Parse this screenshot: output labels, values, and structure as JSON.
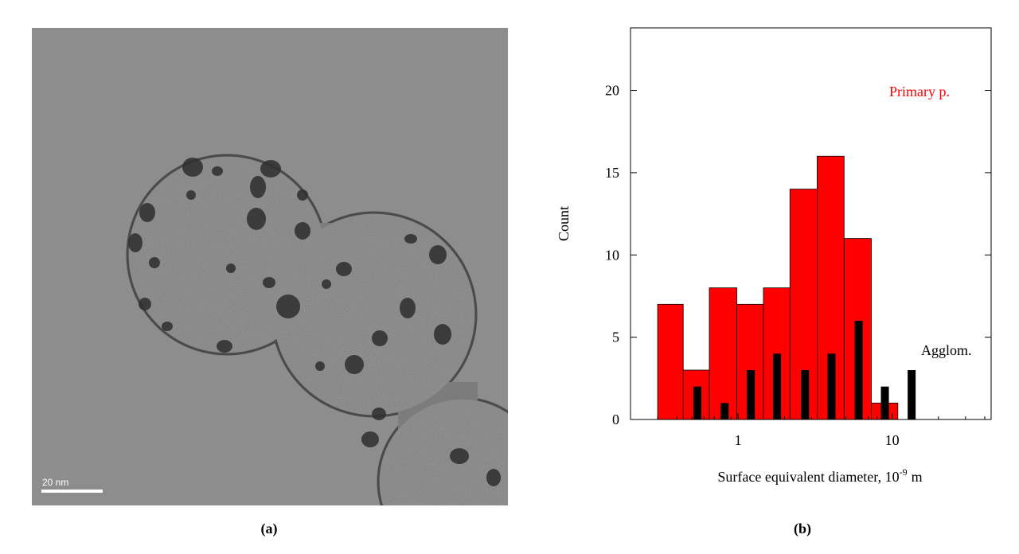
{
  "panel_a": {
    "label": "(a)",
    "scale_bar": "20 nm"
  },
  "chart_data": {
    "type": "histogram",
    "panel_label": "(b)",
    "ylabel": "Count",
    "xlabel": [
      "Surface equivalent diameter, 10",
      "-9",
      "m"
    ],
    "xscale": "log",
    "xlim": [
      0.2,
      44
    ],
    "xticks": [
      1,
      10
    ],
    "xminorticks": [
      0.3,
      0.4,
      0.5,
      0.6,
      0.7,
      0.8,
      0.9,
      2,
      3,
      4,
      5,
      6,
      7,
      8,
      9,
      20,
      30,
      40
    ],
    "ylim": [
      0,
      23.8
    ],
    "yticks": [
      0,
      5,
      10,
      15,
      20
    ],
    "series": [
      {
        "name": "Primary p.",
        "color": "#ff0000",
        "bins": [
          0.3,
          0.44,
          0.65,
          0.98,
          1.46,
          2.17,
          3.26,
          4.88,
          7.33,
          10.9
        ],
        "values": [
          7,
          3,
          8,
          7,
          8,
          14,
          16,
          11,
          1
        ]
      },
      {
        "name": "Agglom.",
        "color": "#000000",
        "x": [
          0.544,
          0.817,
          1.21,
          1.79,
          2.72,
          4.04,
          6.06,
          8.98,
          13.4
        ],
        "values": [
          2,
          1,
          3,
          4,
          3,
          4,
          6,
          2,
          3
        ]
      }
    ]
  }
}
